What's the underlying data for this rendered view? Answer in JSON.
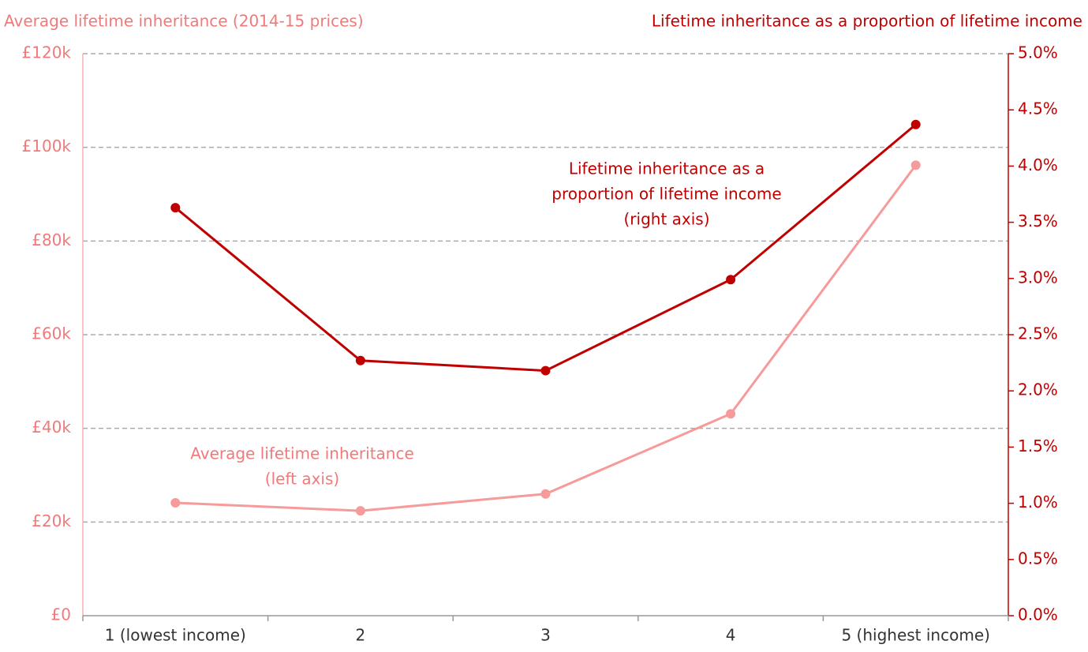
{
  "chart_data": {
    "type": "line",
    "y_axis_title": "Average lifetime inheritance (2014-15 prices)",
    "y2_axis_title": "Lifetime inheritance as a proportion of lifetime income",
    "categories": [
      "1 (lowest income)",
      "2",
      "3",
      "4",
      "5 (highest income)"
    ],
    "series": [
      {
        "name": "Average lifetime inheritance",
        "color": "#f79a9a",
        "axis": "y",
        "values": [
          24100,
          22400,
          26000,
          43100,
          96200
        ]
      },
      {
        "name": "Lifetime inheritance as a proportion of lifetime income",
        "color": "#c00000",
        "axis": "y2",
        "values": [
          3.63,
          2.27,
          2.18,
          2.99,
          4.37
        ]
      }
    ],
    "annotations": [
      {
        "lines": [
          "Lifetime inheritance as a",
          "proportion of lifetime income",
          "(right axis)"
        ]
      },
      {
        "lines": [
          "Average lifetime inheritance",
          "(left axis)"
        ]
      }
    ],
    "ylim": [
      0,
      120000
    ],
    "yticks": [
      {
        "value": 0,
        "label": "£0"
      },
      {
        "value": 20000,
        "label": "£20k"
      },
      {
        "value": 40000,
        "label": "£40k"
      },
      {
        "value": 60000,
        "label": "£60k"
      },
      {
        "value": 80000,
        "label": "£80k"
      },
      {
        "value": 100000,
        "label": "£100k"
      },
      {
        "value": 120000,
        "label": "£120k"
      }
    ],
    "y2lim": [
      0,
      5
    ],
    "y2ticks": [
      {
        "value": 0,
        "label": "0.0%"
      },
      {
        "value": 0.5,
        "label": "0.5%"
      },
      {
        "value": 1,
        "label": "1.0%"
      },
      {
        "value": 1.5,
        "label": "1.5%"
      },
      {
        "value": 2,
        "label": "2.0%"
      },
      {
        "value": 2.5,
        "label": "2.5%"
      },
      {
        "value": 3,
        "label": "3.0%"
      },
      {
        "value": 3.5,
        "label": "3.5%"
      },
      {
        "value": 4,
        "label": "4.0%"
      },
      {
        "value": 4.5,
        "label": "4.5%"
      },
      {
        "value": 5,
        "label": "5.0%"
      }
    ],
    "grid": true
  }
}
